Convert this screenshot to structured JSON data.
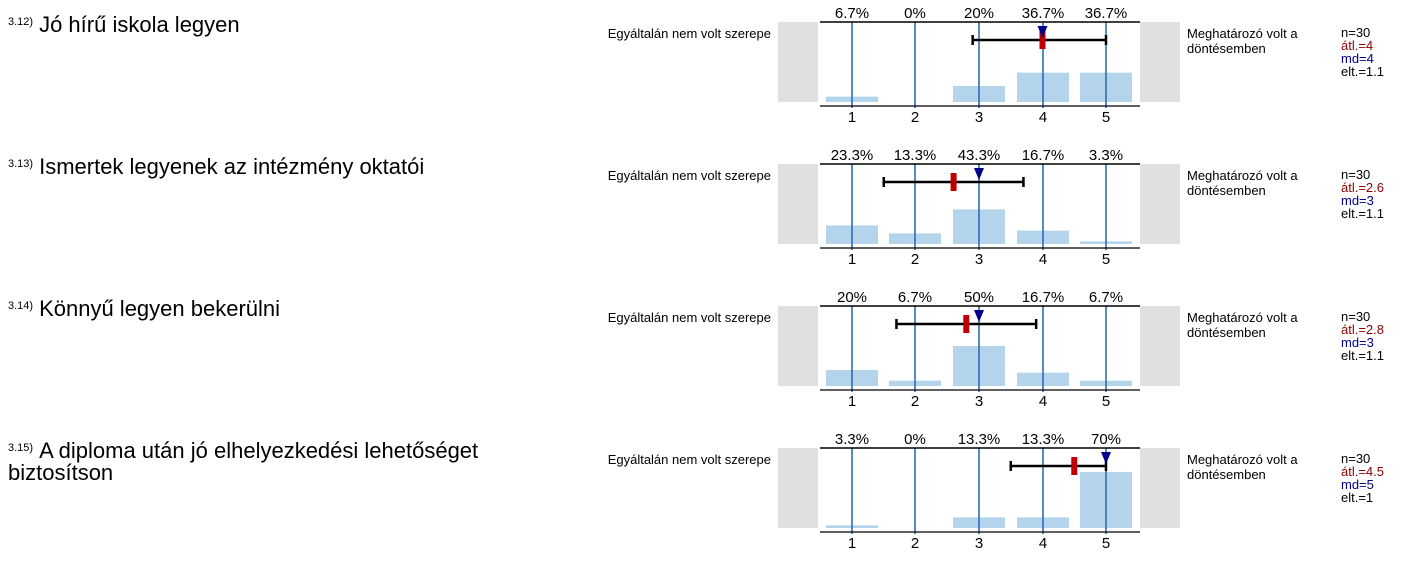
{
  "scale": {
    "left_label": "Egyáltalán nem volt szerepe",
    "right_label": "Meghatározó volt a döntésemben",
    "ticks": [
      "1",
      "2",
      "3",
      "4",
      "5"
    ]
  },
  "colors": {
    "bar": "#b4d4ec",
    "gridline": "#2166ac",
    "mean_marker": "#c00000",
    "median_marker": "#00008b",
    "panel": "#e0e0e0"
  },
  "chart_data": [
    {
      "type": "bar",
      "number": "3.12)",
      "question": "Jó hírű iskola legyen",
      "categories": [
        "1",
        "2",
        "3",
        "4",
        "5"
      ],
      "values": [
        6.7,
        0,
        20,
        36.7,
        36.7
      ],
      "value_labels": [
        "6.7%",
        "0%",
        "20%",
        "36.7%",
        "36.7%"
      ],
      "ylim": [
        0,
        100
      ],
      "mean": 4,
      "median": 4,
      "sd": 1.1,
      "stats": {
        "n": "n=30",
        "mean": "átl.=4",
        "md": "md=4",
        "sd": "elt.=1.1"
      }
    },
    {
      "type": "bar",
      "number": "3.13)",
      "question": "Ismertek legyenek az intézmény oktatói",
      "categories": [
        "1",
        "2",
        "3",
        "4",
        "5"
      ],
      "values": [
        23.3,
        13.3,
        43.3,
        16.7,
        3.3
      ],
      "value_labels": [
        "23.3%",
        "13.3%",
        "43.3%",
        "16.7%",
        "3.3%"
      ],
      "ylim": [
        0,
        100
      ],
      "mean": 2.6,
      "median": 3,
      "sd": 1.1,
      "stats": {
        "n": "n=30",
        "mean": "átl.=2.6",
        "md": "md=3",
        "sd": "elt.=1.1"
      }
    },
    {
      "type": "bar",
      "number": "3.14)",
      "question": "Könnyű legyen bekerülni",
      "categories": [
        "1",
        "2",
        "3",
        "4",
        "5"
      ],
      "values": [
        20,
        6.7,
        50,
        16.7,
        6.7
      ],
      "value_labels": [
        "20%",
        "6.7%",
        "50%",
        "16.7%",
        "6.7%"
      ],
      "ylim": [
        0,
        100
      ],
      "mean": 2.8,
      "median": 3,
      "sd": 1.1,
      "stats": {
        "n": "n=30",
        "mean": "átl.=2.8",
        "md": "md=3",
        "sd": "elt.=1.1"
      }
    },
    {
      "type": "bar",
      "number": "3.15)",
      "question": "A diploma után jó elhelyezkedési lehetőséget biztosítson",
      "categories": [
        "1",
        "2",
        "3",
        "4",
        "5"
      ],
      "values": [
        3.3,
        0,
        13.3,
        13.3,
        70
      ],
      "value_labels": [
        "3.3%",
        "0%",
        "13.3%",
        "13.3%",
        "70%"
      ],
      "ylim": [
        0,
        100
      ],
      "mean": 4.5,
      "median": 5,
      "sd": 1,
      "stats": {
        "n": "n=30",
        "mean": "átl.=4.5",
        "md": "md=5",
        "sd": "elt.=1"
      }
    }
  ]
}
